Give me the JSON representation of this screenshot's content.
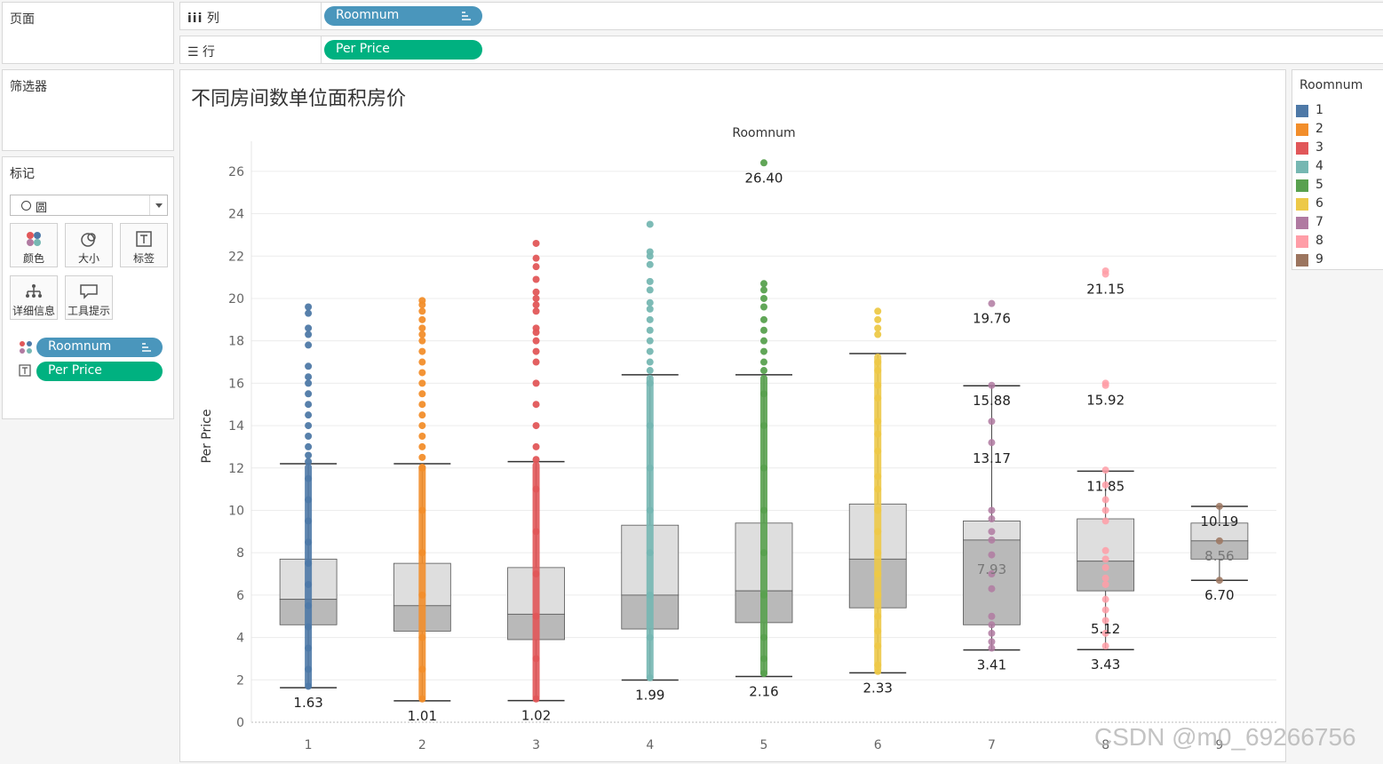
{
  "left_panel": {
    "pages_title": "页面",
    "filters_title": "筛选器",
    "marks_title": "标记",
    "mark_type": "圆",
    "buttons": [
      {
        "label": "颜色",
        "icon": "color-icon"
      },
      {
        "label": "大小",
        "icon": "size-icon"
      },
      {
        "label": "标签",
        "icon": "label-icon"
      },
      {
        "label": "详细信息",
        "icon": "detail-icon"
      },
      {
        "label": "工具提示",
        "icon": "tooltip-icon"
      }
    ],
    "mark_pills": [
      {
        "label": "Roomnum",
        "icon": "color-icon"
      },
      {
        "label": "Per Price",
        "icon": "label-icon"
      }
    ]
  },
  "shelves": {
    "columns_label": "列",
    "columns_pill": "Roomnum",
    "rows_label": "行",
    "rows_pill": "Per Price"
  },
  "legend": {
    "title": "Roomnum",
    "items": [
      {
        "label": "1",
        "color": "#4e79a7"
      },
      {
        "label": "2",
        "color": "#f28e2b"
      },
      {
        "label": "3",
        "color": "#e15759"
      },
      {
        "label": "4",
        "color": "#76b7b2"
      },
      {
        "label": "5",
        "color": "#59a14f"
      },
      {
        "label": "6",
        "color": "#edc948"
      },
      {
        "label": "7",
        "color": "#b07aa1"
      },
      {
        "label": "8",
        "color": "#ff9da7"
      },
      {
        "label": "9",
        "color": "#9c755f"
      }
    ]
  },
  "watermark": "CSDN @m0_69266756",
  "chart_data": {
    "type": "boxplot",
    "title": "不同房间数单位面积房价",
    "column_header": "Roomnum",
    "ylabel": "Per Price",
    "ylim": [
      0,
      27
    ],
    "yticks": [
      0,
      2,
      4,
      6,
      8,
      10,
      12,
      14,
      16,
      18,
      20,
      22,
      24,
      26
    ],
    "grid": true,
    "categories": [
      "1",
      "2",
      "3",
      "4",
      "5",
      "6",
      "7",
      "8",
      "9"
    ],
    "boxes": [
      {
        "category": "1",
        "whisker_low": 1.63,
        "q1": 4.6,
        "median": 5.8,
        "q3": 7.7,
        "whisker_high": 12.2,
        "max": 19.6,
        "labels": [
          "1.63"
        ]
      },
      {
        "category": "2",
        "whisker_low": 1.01,
        "q1": 4.3,
        "median": 5.5,
        "q3": 7.5,
        "whisker_high": 12.2,
        "max": 20.0,
        "labels": [
          "1.01"
        ]
      },
      {
        "category": "3",
        "whisker_low": 1.02,
        "q1": 3.9,
        "median": 5.1,
        "q3": 7.3,
        "whisker_high": 12.3,
        "max": 22.6,
        "labels": [
          "1.02"
        ]
      },
      {
        "category": "4",
        "whisker_low": 1.99,
        "q1": 4.4,
        "median": 6.0,
        "q3": 9.3,
        "whisker_high": 16.4,
        "max": 23.5,
        "labels": [
          "1.99"
        ]
      },
      {
        "category": "5",
        "whisker_low": 2.16,
        "q1": 4.7,
        "median": 6.2,
        "q3": 9.4,
        "whisker_high": 16.4,
        "max": 26.4,
        "labels": [
          "2.16",
          "26.40"
        ]
      },
      {
        "category": "6",
        "whisker_low": 2.33,
        "q1": 5.4,
        "median": 7.7,
        "q3": 10.3,
        "whisker_high": 17.4,
        "max": 19.5,
        "labels": [
          "2.33"
        ]
      },
      {
        "category": "7",
        "whisker_low": 3.41,
        "q1": 4.6,
        "median": 8.6,
        "q3": 9.5,
        "whisker_high": 15.88,
        "max": 19.76,
        "labels": [
          "3.41",
          "7.93",
          "13.17",
          "15.88",
          "19.76"
        ]
      },
      {
        "category": "8",
        "whisker_low": 3.43,
        "q1": 6.2,
        "median": 7.6,
        "q3": 9.6,
        "whisker_high": 11.85,
        "max": 21.15,
        "labels": [
          "3.43",
          "5.12",
          "11.85",
          "15.92",
          "21.15"
        ]
      },
      {
        "category": "9",
        "whisker_low": 6.7,
        "q1": 7.7,
        "median": 8.56,
        "q3": 9.4,
        "whisker_high": 10.19,
        "max": 10.19,
        "labels": [
          "6.70",
          "8.56",
          "10.19"
        ]
      }
    ],
    "points": [
      {
        "category": "1",
        "values": [
          1.7,
          2.5,
          3.5,
          4.5,
          5.5,
          6.5,
          7.5,
          8.5,
          9.5,
          10.5,
          11.5,
          12.3,
          12.6,
          13.0,
          13.5,
          14.0,
          14.5,
          15.0,
          15.5,
          16.0,
          16.3,
          16.8,
          17.8,
          18.3,
          18.6,
          19.3,
          19.6
        ]
      },
      {
        "category": "2",
        "values": [
          1.1,
          2.5,
          4.0,
          6.0,
          8.0,
          10.0,
          12.0,
          12.5,
          13.0,
          13.5,
          14.0,
          14.5,
          15.0,
          15.5,
          16.0,
          16.5,
          17.0,
          17.5,
          18.0,
          18.3,
          18.6,
          19.0,
          19.4,
          19.7,
          19.9
        ]
      },
      {
        "category": "3",
        "values": [
          1.1,
          3.0,
          5.0,
          7.0,
          9.0,
          11.0,
          12.4,
          13.0,
          14.0,
          15.0,
          16.0,
          17.0,
          17.5,
          18.0,
          18.4,
          18.6,
          19.4,
          19.7,
          20.0,
          20.3,
          20.9,
          21.5,
          21.9,
          22.6
        ]
      },
      {
        "category": "4",
        "values": [
          2.1,
          4.0,
          6.0,
          8.0,
          10.0,
          12.0,
          14.0,
          16.0,
          16.6,
          17.0,
          17.5,
          18.0,
          18.5,
          19.0,
          19.5,
          19.8,
          20.4,
          20.8,
          21.6,
          22.0,
          22.2,
          23.5
        ]
      },
      {
        "category": "5",
        "values": [
          2.3,
          3.0,
          4.0,
          6.0,
          8.0,
          10.0,
          12.0,
          14.0,
          15.5,
          16.6,
          17.0,
          17.5,
          18.0,
          18.5,
          19.0,
          19.6,
          20.0,
          20.4,
          20.7,
          26.4
        ]
      },
      {
        "category": "6",
        "values": [
          2.4,
          2.7,
          3.6,
          4.3,
          5.0,
          6.0,
          7.0,
          8.0,
          9.0,
          10.0,
          11.0,
          11.6,
          12.8,
          13.6,
          14.2,
          15.3,
          15.9,
          16.6,
          17.0,
          18.3,
          18.6,
          19.0,
          19.4
        ]
      },
      {
        "category": "7",
        "values": [
          3.5,
          3.8,
          4.2,
          4.6,
          5.0,
          6.3,
          7.0,
          7.9,
          8.6,
          9.0,
          9.6,
          10.0,
          13.2,
          14.2,
          15.9,
          19.76
        ]
      },
      {
        "category": "8",
        "values": [
          3.6,
          4.2,
          4.8,
          5.3,
          5.8,
          6.5,
          6.8,
          7.3,
          7.7,
          8.1,
          9.5,
          10.0,
          10.5,
          11.2,
          11.9,
          15.9,
          16.0,
          21.15,
          21.3
        ]
      },
      {
        "category": "9",
        "values": [
          6.7,
          8.56,
          10.19
        ]
      }
    ]
  }
}
